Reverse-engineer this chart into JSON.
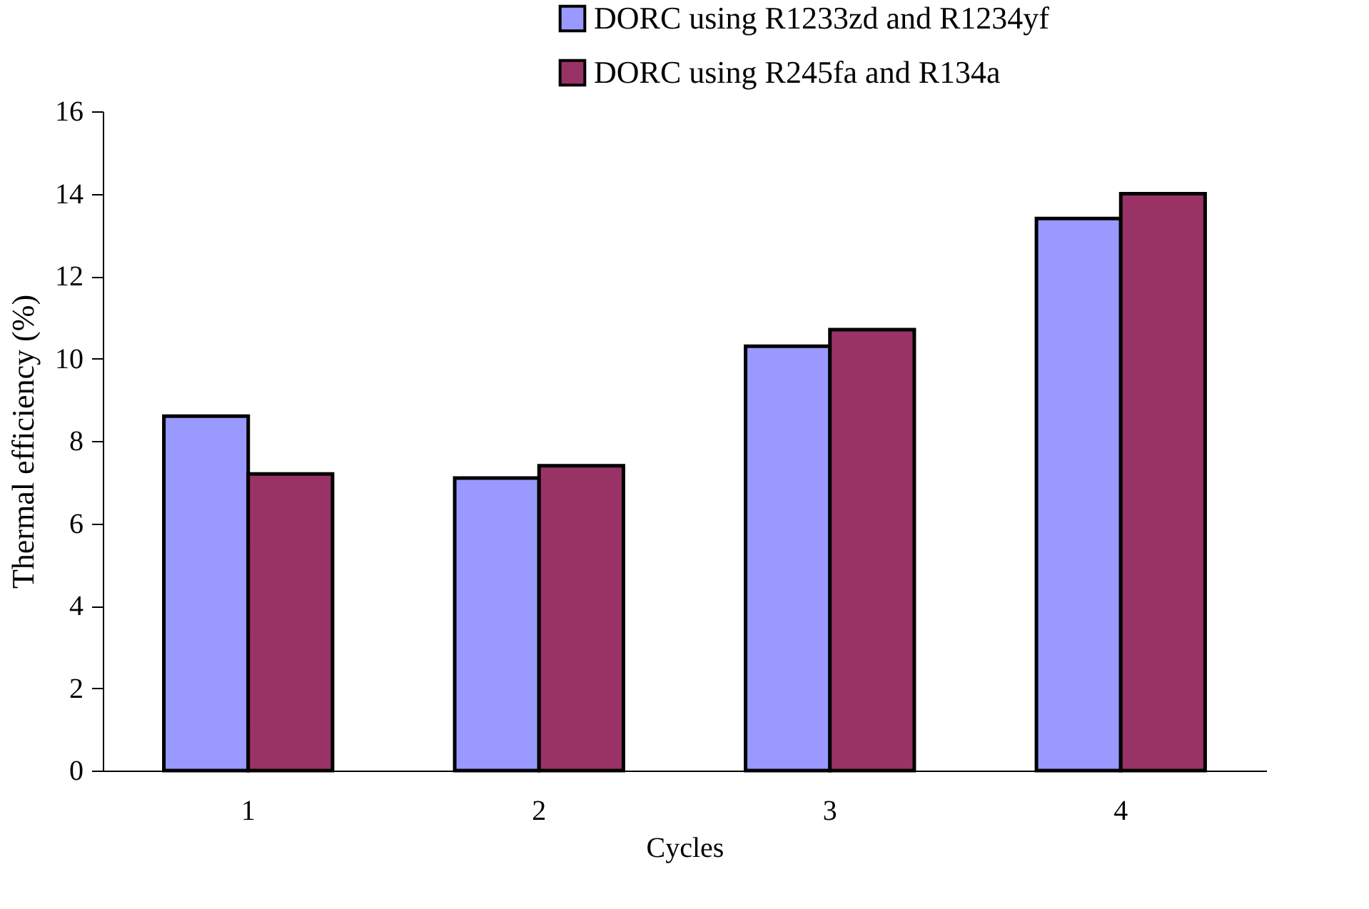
{
  "chart_data": {
    "type": "bar",
    "xlabel": "Cycles",
    "ylabel": "Thermal efficiency (%)",
    "categories": [
      "1",
      "2",
      "3",
      "4"
    ],
    "series": [
      {
        "name": "DORC using R1233zd and R1234yf",
        "color": "#9999ff",
        "values": [
          8.6,
          7.1,
          10.3,
          13.4
        ]
      },
      {
        "name": "DORC using R245fa and R134a",
        "color": "#993366",
        "values": [
          7.2,
          7.4,
          10.7,
          14.0
        ]
      }
    ],
    "ylim": [
      0,
      16
    ],
    "yticks": [
      0,
      2,
      4,
      6,
      8,
      10,
      12,
      14,
      16
    ],
    "grid": false,
    "legend": "top right"
  }
}
